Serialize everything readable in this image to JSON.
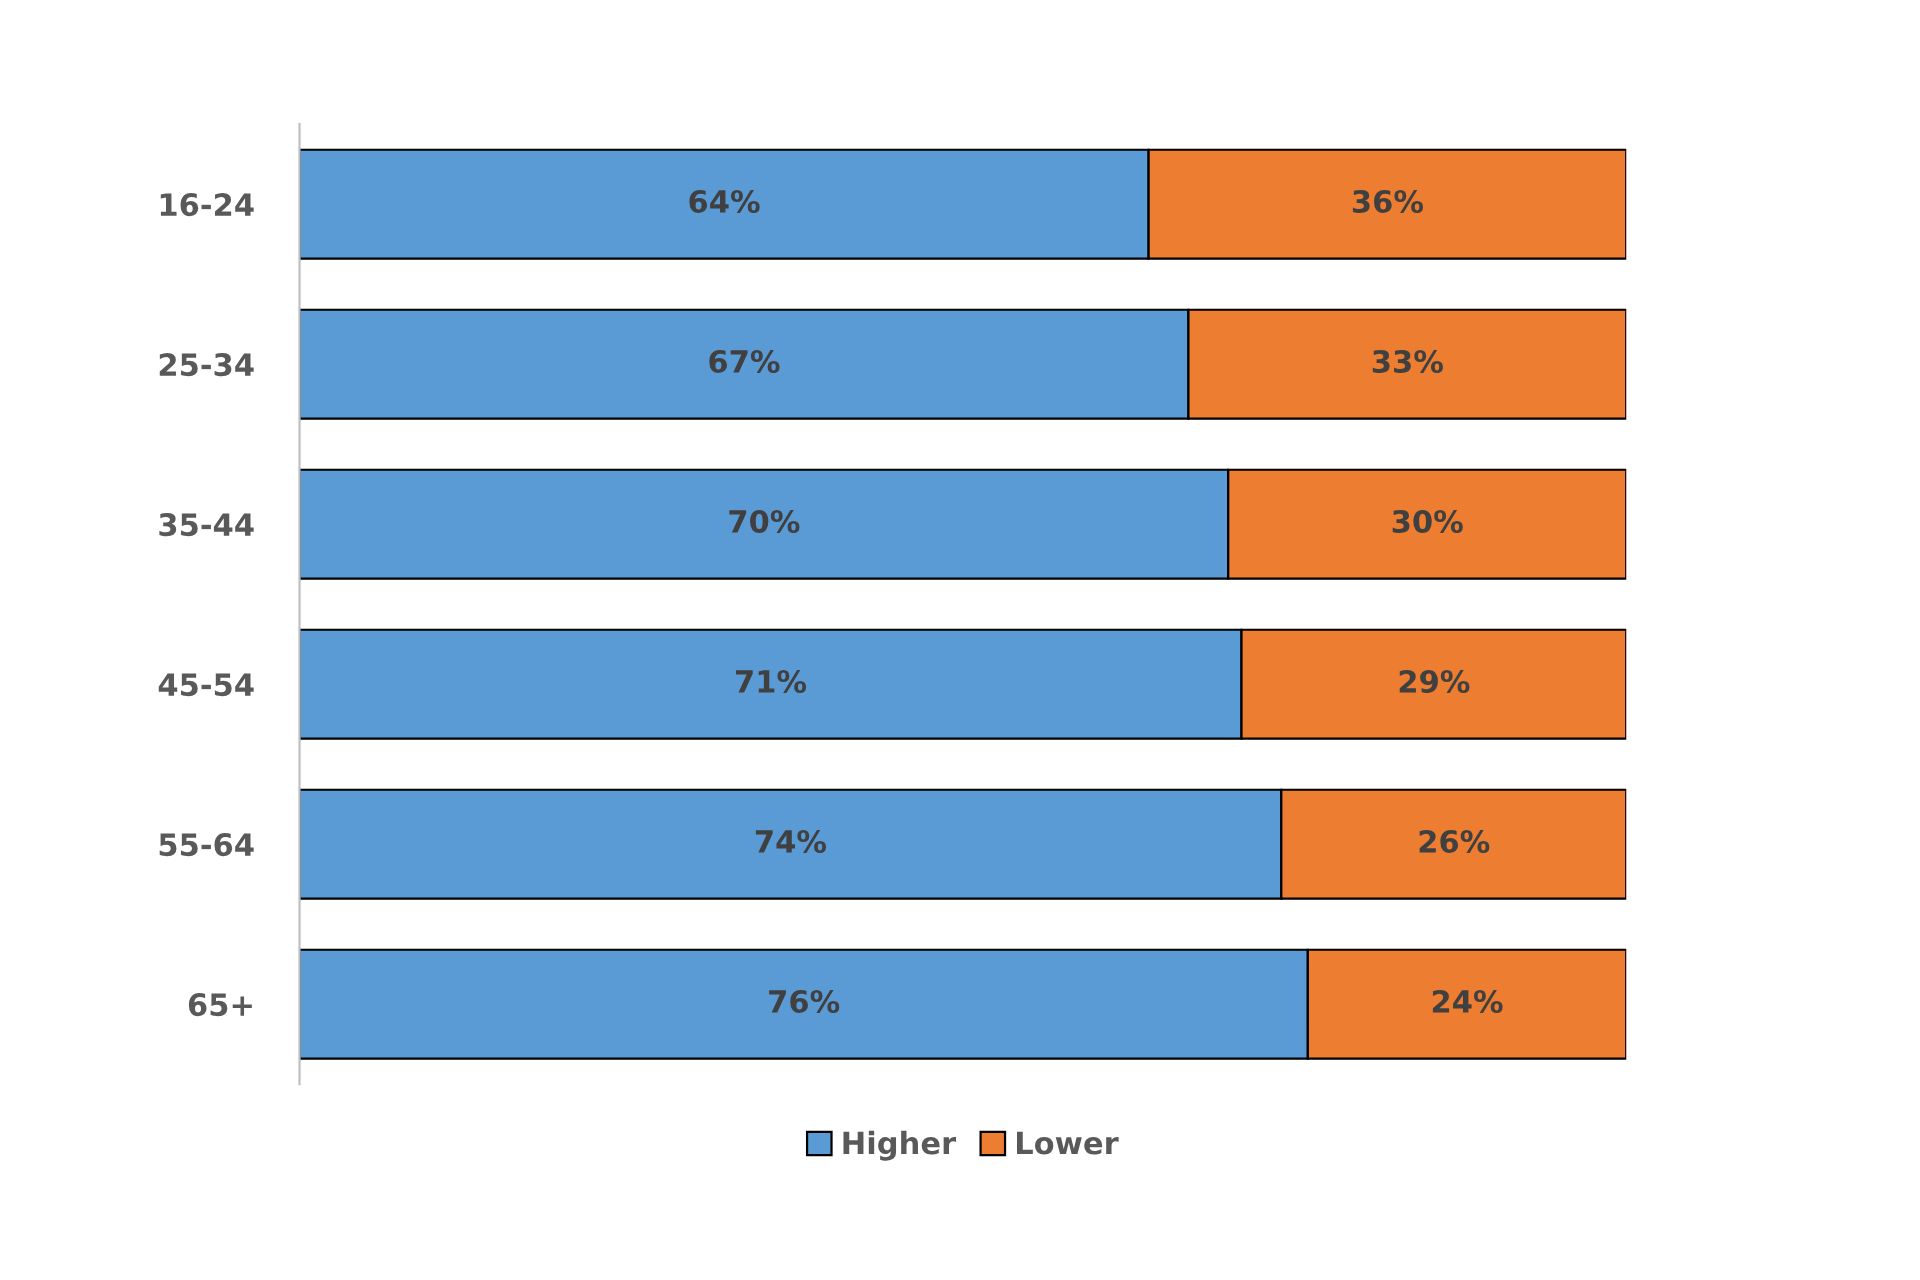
{
  "chart_data": {
    "type": "bar",
    "orientation": "horizontal",
    "stacked": true,
    "categories": [
      "16-24",
      "25-34",
      "35-44",
      "45-54",
      "55-64",
      "65+"
    ],
    "series": [
      {
        "name": "Higher",
        "color": "#5b9bd5",
        "values": [
          64,
          67,
          70,
          71,
          74,
          76
        ],
        "value_labels": [
          "64%",
          "67%",
          "70%",
          "71%",
          "74%",
          "76%"
        ]
      },
      {
        "name": "Lower",
        "color": "#ed7d31",
        "values": [
          36,
          33,
          30,
          29,
          26,
          24
        ],
        "value_labels": [
          "36%",
          "33%",
          "30%",
          "29%",
          "26%",
          "24%"
        ]
      }
    ],
    "legend": "bottom"
  }
}
